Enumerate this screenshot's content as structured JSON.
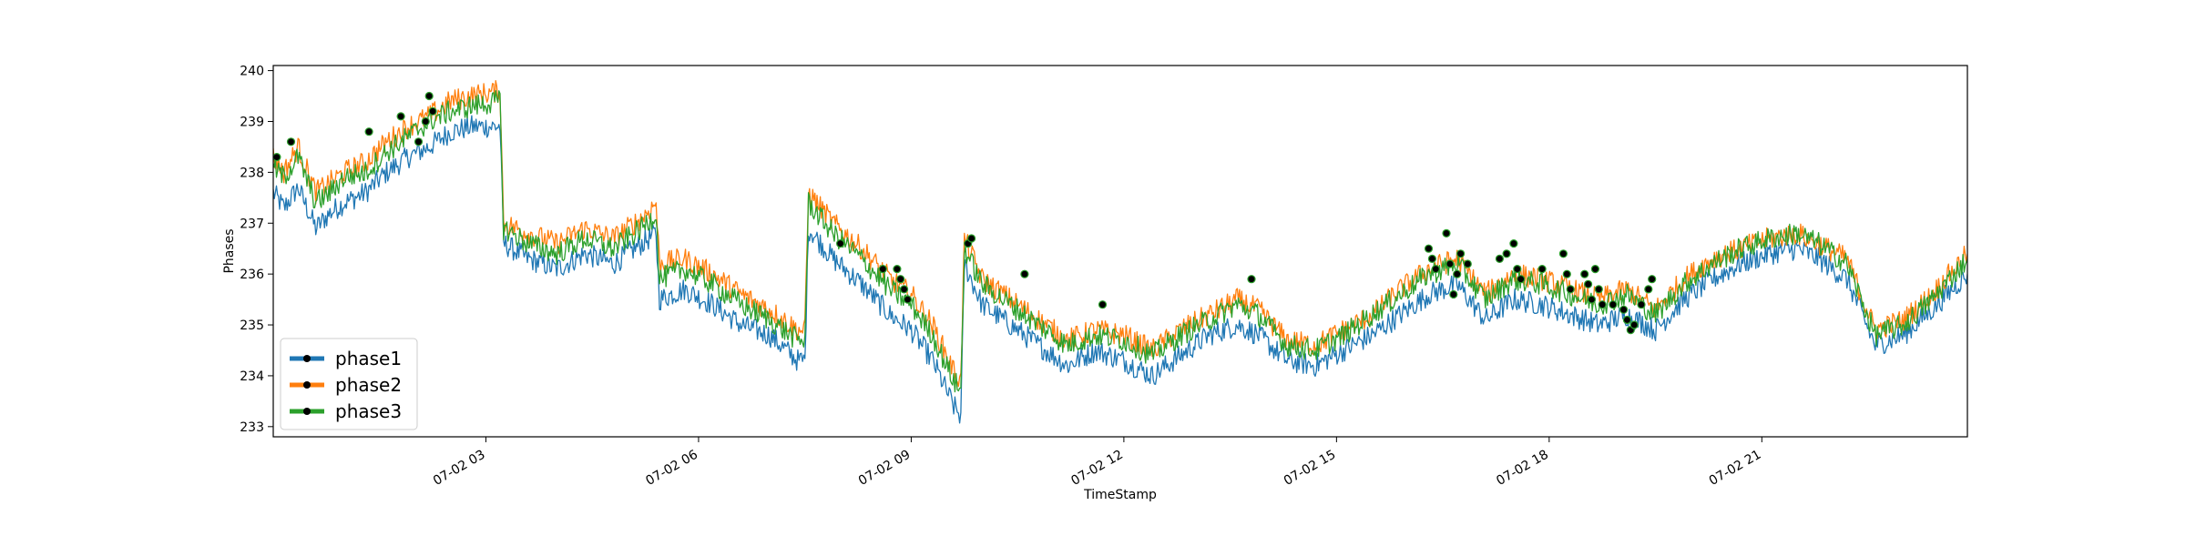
{
  "chart_data": {
    "type": "line",
    "title": "",
    "xlabel": "TimeStamp",
    "ylabel": "Phases",
    "x_start": "07-02 00:00",
    "x_end": "07-02 23:59",
    "xlim_hours": [
      0,
      23.9
    ],
    "ylim": [
      232.8,
      240.1
    ],
    "y_ticks": [
      233,
      234,
      235,
      236,
      237,
      238,
      239,
      240
    ],
    "x_ticks": [
      {
        "hour": 3,
        "label": "07-02 03"
      },
      {
        "hour": 6,
        "label": "07-02 06"
      },
      {
        "hour": 9,
        "label": "07-02 09"
      },
      {
        "hour": 12,
        "label": "07-02 12"
      },
      {
        "hour": 15,
        "label": "07-02 15"
      },
      {
        "hour": 18,
        "label": "07-02 18"
      },
      {
        "hour": 21,
        "label": "07-02 21"
      }
    ],
    "legend_position": "lower-left",
    "grid": false,
    "series": [
      {
        "name": "phase1",
        "color": "#1f77b4",
        "x": [
          0,
          0.15,
          0.35,
          0.6,
          0.8,
          1.0,
          1.3,
          1.6,
          1.9,
          2.2,
          2.5,
          2.8,
          3.2,
          3.25,
          3.6,
          4.0,
          4.4,
          4.8,
          5.2,
          5.4,
          5.45,
          5.8,
          6.2,
          6.6,
          7.0,
          7.4,
          7.5,
          7.55,
          7.9,
          8.3,
          8.7,
          9.0,
          9.3,
          9.6,
          9.7,
          9.75,
          10.0,
          10.4,
          10.8,
          11.2,
          11.6,
          12.0,
          12.4,
          12.8,
          13.2,
          13.6,
          13.9,
          14.3,
          14.7,
          15.1,
          15.5,
          15.9,
          16.3,
          16.7,
          17.1,
          17.5,
          17.9,
          18.3,
          18.7,
          19.1,
          19.5,
          19.9,
          20.3,
          20.7,
          21.1,
          21.5,
          21.8,
          22.2,
          22.6,
          23.0,
          23.4,
          23.9
        ],
        "y": [
          237.6,
          237.3,
          237.7,
          236.9,
          237.2,
          237.4,
          237.6,
          238.0,
          238.3,
          238.5,
          238.8,
          238.9,
          238.9,
          236.6,
          236.3,
          236.1,
          236.4,
          236.2,
          236.6,
          236.8,
          235.5,
          235.7,
          235.4,
          235.0,
          234.8,
          234.3,
          234.3,
          236.9,
          236.3,
          235.8,
          235.2,
          234.9,
          234.3,
          233.4,
          233.2,
          236.2,
          235.4,
          235.0,
          234.6,
          234.2,
          234.5,
          234.3,
          234.0,
          234.4,
          234.8,
          235.0,
          234.8,
          234.3,
          234.2,
          234.5,
          234.8,
          235.2,
          235.6,
          235.8,
          235.1,
          235.5,
          235.4,
          235.2,
          235.0,
          235.2,
          234.9,
          235.5,
          235.9,
          236.2,
          236.4,
          236.5,
          236.3,
          235.9,
          234.6,
          234.8,
          235.3,
          236.0
        ]
      },
      {
        "name": "phase2",
        "color": "#ff7f0e",
        "x": [
          0,
          0.15,
          0.35,
          0.6,
          0.8,
          1.0,
          1.3,
          1.6,
          1.9,
          2.2,
          2.5,
          2.8,
          3.2,
          3.25,
          3.6,
          4.0,
          4.4,
          4.8,
          5.2,
          5.4,
          5.45,
          5.8,
          6.2,
          6.6,
          7.0,
          7.4,
          7.5,
          7.55,
          7.9,
          8.3,
          8.7,
          9.0,
          9.3,
          9.6,
          9.7,
          9.75,
          10.0,
          10.4,
          10.8,
          11.2,
          11.6,
          12.0,
          12.4,
          12.8,
          13.2,
          13.6,
          13.9,
          14.3,
          14.7,
          15.1,
          15.5,
          15.9,
          16.3,
          16.7,
          17.1,
          17.5,
          17.9,
          18.3,
          18.7,
          19.1,
          19.5,
          19.9,
          20.3,
          20.7,
          21.1,
          21.5,
          21.8,
          22.2,
          22.6,
          23.0,
          23.4,
          23.9
        ],
        "y": [
          238.3,
          238.0,
          238.5,
          237.6,
          237.8,
          238.0,
          238.2,
          238.6,
          238.9,
          239.1,
          239.4,
          239.5,
          239.6,
          237.0,
          236.8,
          236.6,
          236.9,
          236.7,
          237.1,
          237.4,
          236.2,
          236.3,
          236.0,
          235.6,
          235.3,
          234.9,
          234.9,
          237.6,
          237.0,
          236.5,
          235.9,
          235.6,
          235.0,
          234.1,
          233.9,
          236.7,
          235.9,
          235.5,
          235.1,
          234.7,
          234.9,
          234.8,
          234.5,
          234.9,
          235.2,
          235.5,
          235.3,
          234.7,
          234.6,
          234.9,
          235.2,
          235.7,
          236.1,
          236.3,
          235.6,
          236.0,
          235.9,
          235.7,
          235.5,
          235.7,
          235.3,
          235.9,
          236.3,
          236.5,
          236.7,
          236.8,
          236.6,
          236.3,
          234.9,
          235.1,
          235.6,
          236.4
        ]
      },
      {
        "name": "phase3",
        "color": "#2ca02c",
        "x": [
          0,
          0.15,
          0.35,
          0.6,
          0.8,
          1.0,
          1.3,
          1.6,
          1.9,
          2.2,
          2.5,
          2.8,
          3.2,
          3.25,
          3.6,
          4.0,
          4.4,
          4.8,
          5.2,
          5.4,
          5.45,
          5.8,
          6.2,
          6.6,
          7.0,
          7.4,
          7.5,
          7.55,
          7.9,
          8.3,
          8.7,
          9.0,
          9.3,
          9.6,
          9.7,
          9.75,
          10.0,
          10.4,
          10.8,
          11.2,
          11.6,
          12.0,
          12.4,
          12.8,
          13.2,
          13.6,
          13.9,
          14.3,
          14.7,
          15.1,
          15.5,
          15.9,
          16.3,
          16.7,
          17.1,
          17.5,
          17.9,
          18.3,
          18.7,
          19.1,
          19.5,
          19.9,
          20.3,
          20.7,
          21.1,
          21.5,
          21.8,
          22.2,
          22.6,
          23.0,
          23.4,
          23.9
        ],
        "y": [
          238.1,
          237.9,
          238.3,
          237.4,
          237.6,
          237.9,
          238.0,
          238.4,
          238.7,
          239.0,
          239.2,
          239.3,
          239.4,
          236.9,
          236.6,
          236.4,
          236.7,
          236.5,
          236.9,
          237.2,
          235.9,
          236.1,
          235.8,
          235.4,
          235.1,
          234.7,
          234.7,
          237.4,
          236.8,
          236.3,
          235.7,
          235.4,
          234.8,
          233.9,
          233.7,
          236.5,
          235.8,
          235.4,
          235.0,
          234.6,
          234.8,
          234.7,
          234.4,
          234.8,
          235.1,
          235.4,
          235.2,
          234.6,
          234.5,
          234.8,
          235.2,
          235.6,
          236.0,
          236.2,
          235.5,
          235.9,
          235.8,
          235.6,
          235.4,
          235.6,
          235.2,
          235.8,
          236.2,
          236.5,
          236.7,
          236.8,
          236.6,
          236.2,
          234.8,
          235.0,
          235.5,
          236.3
        ]
      }
    ],
    "markers": {
      "fill_color": "#000000",
      "x": [
        0.05,
        0.25,
        1.35,
        1.8,
        2.05,
        2.15,
        2.2,
        2.25,
        8.0,
        8.6,
        8.8,
        8.85,
        8.9,
        8.95,
        9.8,
        9.85,
        10.6,
        11.7,
        13.8,
        16.3,
        16.35,
        16.4,
        16.55,
        16.6,
        16.65,
        16.7,
        16.75,
        16.85,
        17.3,
        17.4,
        17.5,
        17.55,
        17.6,
        17.9,
        18.2,
        18.25,
        18.3,
        18.5,
        18.55,
        18.6,
        18.65,
        18.7,
        18.75,
        18.9,
        19.05,
        19.1,
        19.15,
        19.2,
        19.3,
        19.4,
        19.45
      ],
      "y": [
        238.3,
        238.6,
        238.8,
        239.1,
        238.6,
        239.0,
        239.5,
        239.2,
        236.6,
        236.1,
        236.1,
        235.9,
        235.7,
        235.5,
        236.6,
        236.7,
        236.0,
        235.4,
        235.9,
        236.5,
        236.3,
        236.1,
        236.8,
        236.2,
        235.6,
        236.0,
        236.4,
        236.2,
        236.3,
        236.4,
        236.6,
        236.1,
        235.9,
        236.1,
        236.4,
        236.0,
        235.7,
        236.0,
        235.8,
        235.5,
        236.1,
        235.7,
        235.4,
        235.4,
        235.3,
        235.1,
        234.9,
        235.0,
        235.4,
        235.7,
        235.9
      ]
    }
  }
}
